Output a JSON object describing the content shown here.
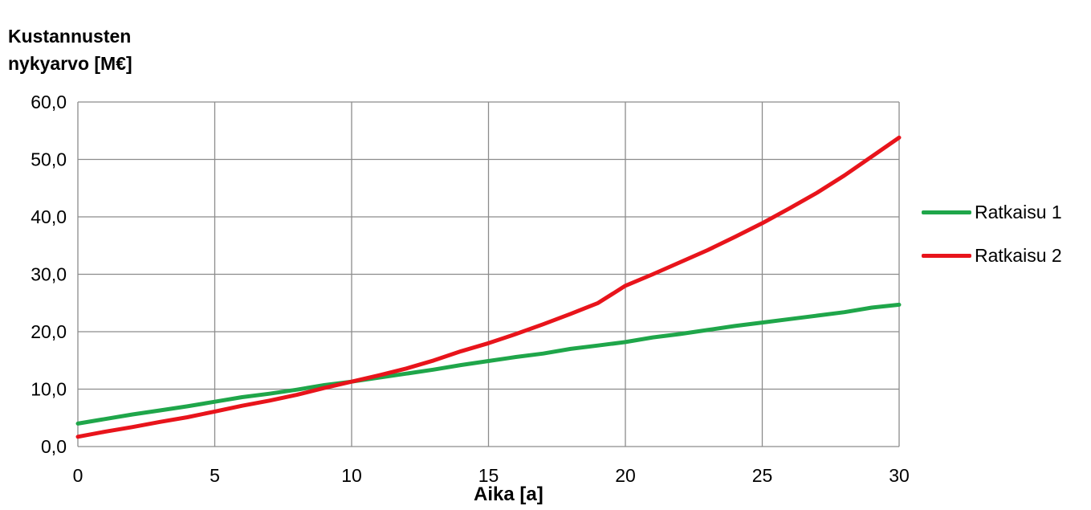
{
  "chart_data": {
    "type": "line",
    "ylabel_lines": [
      "Kustannusten",
      "nykyarvo [M€]"
    ],
    "xlabel": "Aika [a]",
    "xlim": [
      0,
      30
    ],
    "ylim": [
      0,
      60
    ],
    "xticks": [
      "0",
      "5",
      "10",
      "15",
      "20",
      "25",
      "30"
    ],
    "yticks": [
      "0,0",
      "10,0",
      "20,0",
      "30,0",
      "40,0",
      "50,0",
      "60,0"
    ],
    "grid": true,
    "legend_position": "right",
    "x": [
      0,
      1,
      2,
      3,
      4,
      5,
      6,
      7,
      8,
      9,
      10,
      11,
      12,
      13,
      14,
      15,
      16,
      17,
      18,
      19,
      20,
      21,
      22,
      23,
      24,
      25,
      26,
      27,
      28,
      29,
      30
    ],
    "series": [
      {
        "name": "Ratkaisu 1",
        "color": "#1fa64a",
        "values": [
          4.0,
          4.8,
          5.6,
          6.3,
          7.0,
          7.8,
          8.6,
          9.2,
          9.9,
          10.7,
          11.3,
          12.0,
          12.7,
          13.4,
          14.2,
          14.9,
          15.6,
          16.2,
          17.0,
          17.6,
          18.2,
          19.0,
          19.6,
          20.3,
          21.0,
          21.6,
          22.2,
          22.8,
          23.4,
          24.2,
          24.7
        ]
      },
      {
        "name": "Ratkaisu 2",
        "color": "#e8141b",
        "values": [
          1.7,
          2.6,
          3.4,
          4.3,
          5.1,
          6.1,
          7.1,
          8.0,
          9.0,
          10.2,
          11.3,
          12.4,
          13.6,
          15.0,
          16.6,
          18.0,
          19.6,
          21.3,
          23.1,
          25.0,
          28.0,
          30.0,
          32.1,
          34.2,
          36.5,
          38.9,
          41.5,
          44.2,
          47.2,
          50.5,
          53.8
        ]
      }
    ]
  }
}
